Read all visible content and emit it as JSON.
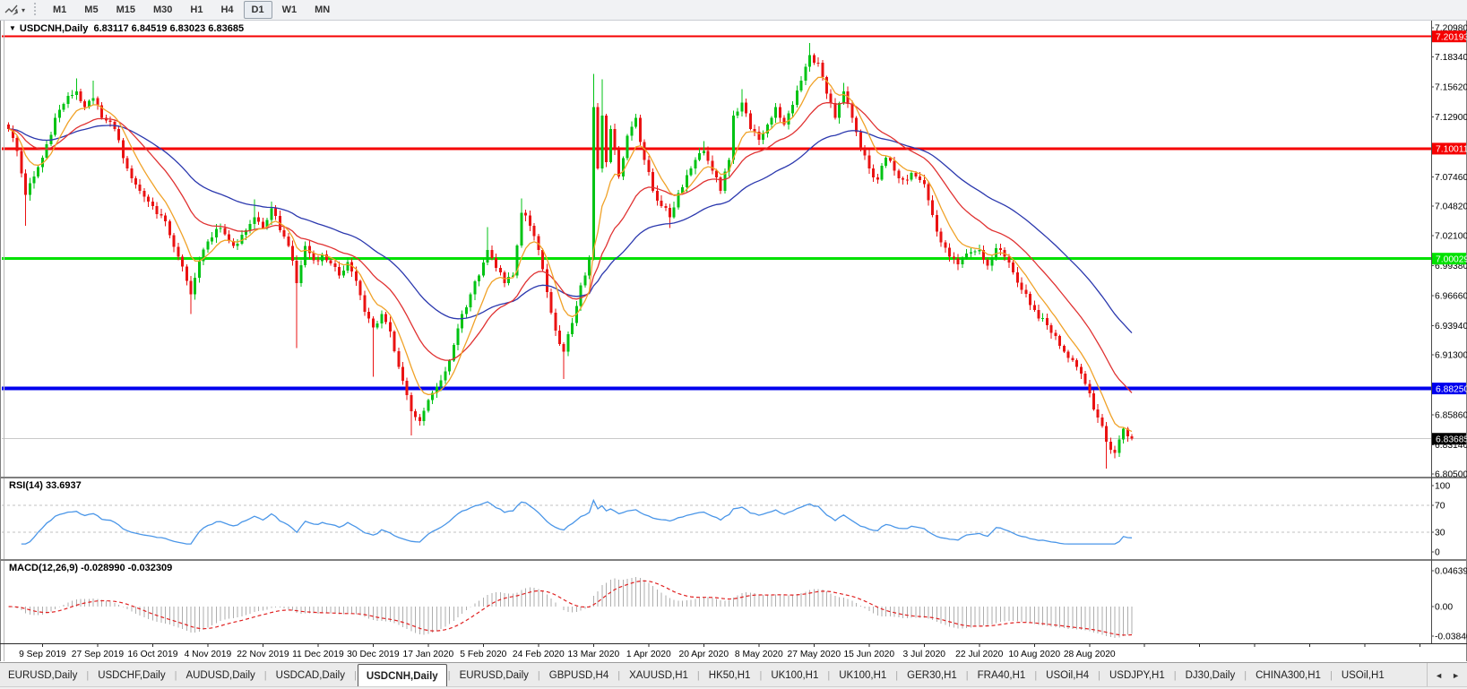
{
  "window": {
    "title_symbol": "USDCNH,Daily",
    "title_ohlc": "6.83117 6.84519 6.83023 6.83685"
  },
  "icons": {
    "caret_down": "▼",
    "dropdown_arrow": "▾",
    "scroll_left": "◄",
    "scroll_right": "►"
  },
  "toolbar": {
    "timeframes": [
      "M1",
      "M5",
      "M15",
      "M30",
      "H1",
      "H4",
      "D1",
      "W1",
      "MN"
    ],
    "active_timeframe": "D1"
  },
  "indicators": {
    "rsi_label": "RSI(14) 33.6937",
    "macd_label": "MACD(12,26,9) -0.028990 -0.032309"
  },
  "tabs": {
    "items": [
      "EURUSD,Daily",
      "USDCHF,Daily",
      "AUDUSD,Daily",
      "USDCAD,Daily",
      "USDCNH,Daily",
      "EURUSD,Daily",
      "GBPUSD,H4",
      "XAUUSD,H1",
      "HK50,H1",
      "UK100,H1",
      "UK100,H1",
      "GER30,H1",
      "FRA40,H1",
      "USOil,H4",
      "USDJPY,H1",
      "DJ30,Daily",
      "CHINA300,H1",
      "USOil,H1"
    ],
    "active_index": 4
  },
  "chart_data": {
    "type": "candlestick",
    "symbol": "USDCNH",
    "period": "Daily",
    "current_ohlc": {
      "open": 6.83117,
      "high": 6.84519,
      "low": 6.83023,
      "close": 6.83685
    },
    "bars_total": 266,
    "first_label_bar": 8,
    "label_every_n_bars": 13,
    "x_labels": [
      "9 Sep 2019",
      "27 Sep 2019",
      "16 Oct 2019",
      "4 Nov 2019",
      "22 Nov 2019",
      "11 Dec 2019",
      "30 Dec 2019",
      "17 Jan 2020",
      "5 Feb 2020",
      "24 Feb 2020",
      "13 Mar 2020",
      "1 Apr 2020",
      "20 Apr 2020",
      "8 May 2020",
      "27 May 2020",
      "15 Jun 2020",
      "3 Jul 2020",
      "22 Jul 2020",
      "10 Aug 2020",
      "28 Aug 2020"
    ],
    "price_axis_ticks": [
      "7.20980",
      "7.18340",
      "7.15620",
      "7.12900",
      "7.07460",
      "7.04820",
      "7.02100",
      "6.99380",
      "6.96660",
      "6.93940",
      "6.91300",
      "6.85860",
      "6.83140",
      "6.80500"
    ],
    "colors": {
      "bull": "#00c314",
      "bear": "#ea1212",
      "ma_fast": "#f0a228",
      "ma_mid": "#e03232",
      "ma_slow": "#2b38ae",
      "rsi_line": "#4a96e8",
      "rsi_levels": "#c0c0c0",
      "macd_histogram": "#aeaeae",
      "macd_signal": "#e02020",
      "current_price_line": "#c9c9c9",
      "current_price_label_bg": "#000000"
    },
    "hlines": [
      {
        "price": 7.20193,
        "label": "7.20193",
        "color": "#f50000",
        "width": 2
      },
      {
        "price": 7.10011,
        "label": "7.10011",
        "color": "#f50000",
        "width": 3
      },
      {
        "price": 7.00029,
        "label": "7.00029",
        "color": "#00e100",
        "width": 3
      },
      {
        "price": 6.8825,
        "label": "6.88250",
        "color": "#0000ee",
        "width": 4
      }
    ],
    "current_price": {
      "value": 6.83685,
      "label": "6.83685"
    },
    "close_keyframes": [
      [
        0,
        7.118
      ],
      [
        2,
        7.098
      ],
      [
        4,
        7.058,
        null,
        7.03
      ],
      [
        6,
        7.075
      ],
      [
        8,
        7.092
      ],
      [
        11,
        7.128
      ],
      [
        14,
        7.148
      ],
      [
        16,
        7.152,
        7.164,
        null
      ],
      [
        18,
        7.138
      ],
      [
        20,
        7.146,
        7.162,
        null
      ],
      [
        22,
        7.128
      ],
      [
        25,
        7.118
      ],
      [
        28,
        7.082
      ],
      [
        31,
        7.062
      ],
      [
        34,
        7.048
      ],
      [
        37,
        7.034
      ],
      [
        40,
        7.002
      ],
      [
        43,
        6.968,
        null,
        6.95
      ],
      [
        45,
        6.998
      ],
      [
        47,
        7.016
      ],
      [
        50,
        7.028
      ],
      [
        53,
        7.012
      ],
      [
        55,
        7.022
      ],
      [
        58,
        7.038,
        7.054,
        null
      ],
      [
        60,
        7.028
      ],
      [
        62,
        7.046,
        7.052,
        null
      ],
      [
        64,
        7.026
      ],
      [
        66,
        7.012
      ],
      [
        68,
        6.978,
        null,
        6.919
      ],
      [
        70,
        7.012
      ],
      [
        72,
        6.999
      ],
      [
        74,
        7.004
      ],
      [
        76,
        6.996
      ],
      [
        78,
        6.985
      ],
      [
        80,
        6.997
      ],
      [
        82,
        6.98
      ],
      [
        84,
        6.952
      ],
      [
        86,
        6.938,
        null,
        6.893
      ],
      [
        88,
        6.95
      ],
      [
        90,
        6.934
      ],
      [
        92,
        6.902
      ],
      [
        95,
        6.862,
        null,
        6.84
      ],
      [
        97,
        6.853
      ],
      [
        99,
        6.872
      ],
      [
        101,
        6.884
      ],
      [
        103,
        6.898
      ],
      [
        105,
        6.922
      ],
      [
        107,
        6.95
      ],
      [
        109,
        6.968
      ],
      [
        111,
        6.985
      ],
      [
        113,
        7.008,
        7.029,
        null
      ],
      [
        115,
        6.992
      ],
      [
        117,
        6.978
      ],
      [
        119,
        6.985
      ],
      [
        121,
        7.042,
        7.055,
        null
      ],
      [
        123,
        7.03
      ],
      [
        125,
        7.008
      ],
      [
        127,
        6.97
      ],
      [
        129,
        6.935
      ],
      [
        131,
        6.916,
        null,
        6.891
      ],
      [
        133,
        6.942
      ],
      [
        135,
        6.976
      ],
      [
        137,
        7.001
      ],
      [
        138,
        7.138,
        7.168,
        null
      ],
      [
        139,
        7.082
      ],
      [
        140,
        7.13,
        7.163,
        null
      ],
      [
        141,
        7.088
      ],
      [
        142,
        7.118
      ],
      [
        144,
        7.075
      ],
      [
        146,
        7.112
      ],
      [
        148,
        7.128
      ],
      [
        150,
        7.09
      ],
      [
        152,
        7.062
      ],
      [
        154,
        7.048
      ],
      [
        156,
        7.038,
        null,
        7.028
      ],
      [
        158,
        7.06
      ],
      [
        160,
        7.076
      ],
      [
        162,
        7.09
      ],
      [
        164,
        7.098,
        7.107,
        null
      ],
      [
        166,
        7.08
      ],
      [
        168,
        7.062
      ],
      [
        170,
        7.09
      ],
      [
        171,
        7.13
      ],
      [
        173,
        7.142,
        7.154,
        null
      ],
      [
        175,
        7.118
      ],
      [
        177,
        7.108
      ],
      [
        179,
        7.122
      ],
      [
        181,
        7.138
      ],
      [
        183,
        7.122
      ],
      [
        185,
        7.14
      ],
      [
        187,
        7.162
      ],
      [
        189,
        7.185,
        7.196,
        null
      ],
      [
        191,
        7.178
      ],
      [
        193,
        7.15
      ],
      [
        195,
        7.128
      ],
      [
        197,
        7.152,
        7.16,
        null
      ],
      [
        199,
        7.128
      ],
      [
        201,
        7.1
      ],
      [
        203,
        7.082
      ],
      [
        205,
        7.072
      ],
      [
        207,
        7.092
      ],
      [
        209,
        7.08
      ],
      [
        211,
        7.072
      ],
      [
        213,
        7.078
      ],
      [
        216,
        7.068
      ],
      [
        218,
        7.04
      ],
      [
        220,
        7.015
      ],
      [
        222,
        7.002
      ],
      [
        224,
        6.995
      ],
      [
        226,
        7.005
      ],
      [
        229,
        7.008
      ],
      [
        231,
        6.994
      ],
      [
        233,
        7.01
      ],
      [
        235,
        7.002
      ],
      [
        237,
        6.988
      ],
      [
        239,
        6.972
      ],
      [
        241,
        6.958
      ],
      [
        243,
        6.946
      ],
      [
        245,
        6.94
      ],
      [
        247,
        6.93
      ],
      [
        249,
        6.916
      ],
      [
        251,
        6.908
      ],
      [
        253,
        6.896
      ],
      [
        255,
        6.878
      ],
      [
        257,
        6.856
      ],
      [
        259,
        6.834,
        null,
        6.81
      ],
      [
        261,
        6.824
      ],
      [
        263,
        6.846
      ],
      [
        265,
        6.83685
      ]
    ],
    "moving_averages": [
      {
        "name": "ma-fast",
        "period": 8
      },
      {
        "name": "ma-mid",
        "period": 22
      },
      {
        "name": "ma-slow",
        "period": 48
      }
    ],
    "rsi": {
      "period": 14,
      "value": 33.6937,
      "levels": [
        70,
        30
      ],
      "axis_ticks": [
        "100",
        "70",
        "30",
        "0"
      ]
    },
    "macd": {
      "fast": 12,
      "slow": 26,
      "signal": 9,
      "macd_value": -0.02899,
      "signal_value": -0.032309,
      "axis_ticks": [
        "0.046394",
        "0.00",
        "-0.03840"
      ]
    }
  }
}
